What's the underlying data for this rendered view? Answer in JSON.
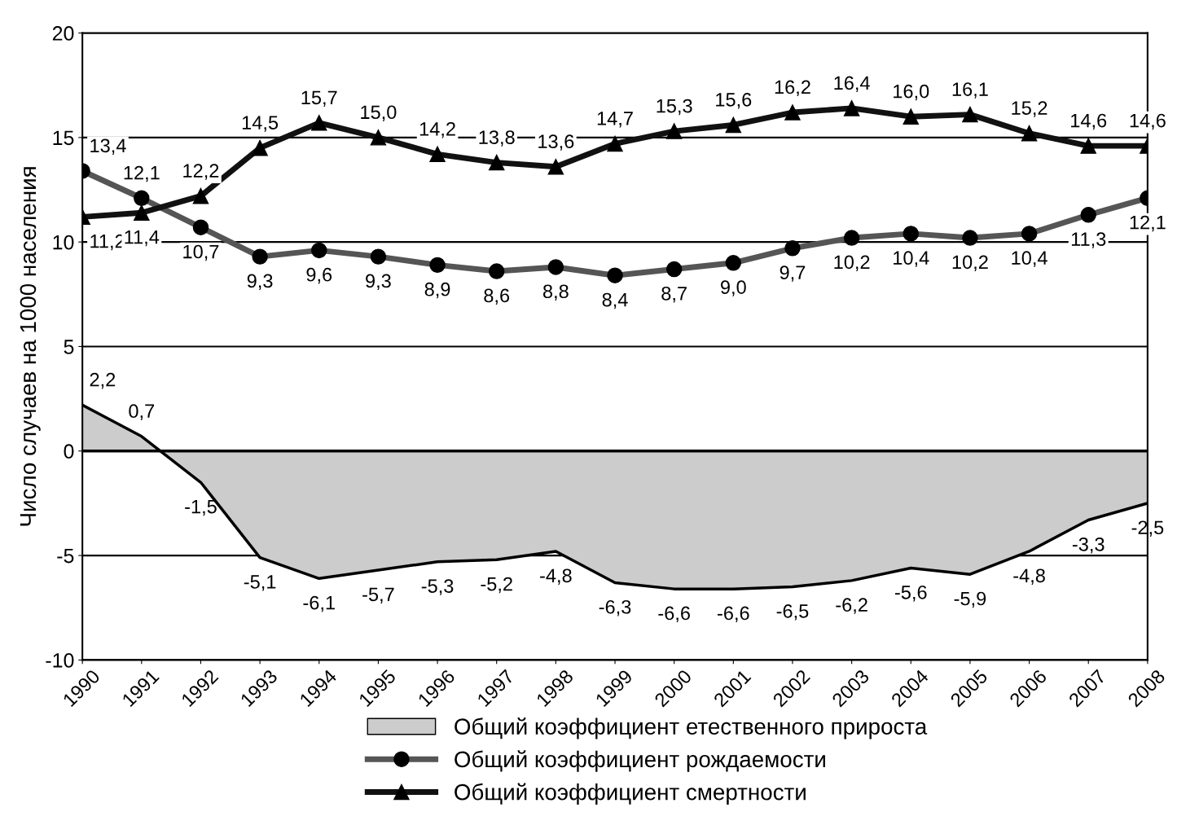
{
  "chart_data": {
    "type": "line",
    "ylabel": "Число случаев на 1000 населения",
    "categories": [
      "1990",
      "1991",
      "1992",
      "1993",
      "1994",
      "1995",
      "1996",
      "1997",
      "1998",
      "1999",
      "2000",
      "2001",
      "2002",
      "2003",
      "2004",
      "2005",
      "2006",
      "2007",
      "2008"
    ],
    "series": [
      {
        "name": "Общий коэффициент етественного прироста",
        "type": "area",
        "color": "#cccccc",
        "marker": "none",
        "values": [
          2.2,
          0.7,
          -1.5,
          -5.1,
          -6.1,
          -5.7,
          -5.3,
          -5.2,
          -4.8,
          -6.3,
          -6.6,
          -6.6,
          -6.5,
          -6.2,
          -5.6,
          -5.9,
          -4.8,
          -3.3,
          -2.5
        ],
        "value_labels": [
          "2,2",
          "0,7",
          "-1,5",
          "-5,1",
          "-6,1",
          "-5,7",
          "-5,3",
          "-5,2",
          "-4,8",
          "-6,3",
          "-6,6",
          "-6,6",
          "-6,5",
          "-6,2",
          "-5,6",
          "-5,9",
          "-4,8",
          "-3,3",
          "-2,5"
        ]
      },
      {
        "name": "Общий коэффициент рождаемости",
        "color": "#555555",
        "marker": "circle",
        "values": [
          13.4,
          12.1,
          10.7,
          9.3,
          9.6,
          9.3,
          8.9,
          8.6,
          8.8,
          8.4,
          8.7,
          9.0,
          9.7,
          10.2,
          10.4,
          10.2,
          10.4,
          11.3,
          12.1
        ],
        "value_labels": [
          "13,4",
          "12,1",
          "10,7",
          "9,3",
          "9,6",
          "9,3",
          "8,9",
          "8,6",
          "8,8",
          "8,4",
          "8,7",
          "9,0",
          "9,7",
          "10,2",
          "10,4",
          "10,2",
          "10,4",
          "11,3",
          "12,1"
        ]
      },
      {
        "name": "Общий коэффициент смертности",
        "color": "#111111",
        "marker": "triangle",
        "values": [
          11.2,
          11.4,
          12.2,
          14.5,
          15.7,
          15.0,
          14.2,
          13.8,
          13.6,
          14.7,
          15.3,
          15.6,
          16.2,
          16.4,
          16.0,
          16.1,
          15.2,
          14.6,
          14.6
        ],
        "value_labels": [
          "11,2",
          "11,4",
          "12,2",
          "14,5",
          "15,7",
          "15,0",
          "14,2",
          "13,8",
          "13,6",
          "14,7",
          "15,3",
          "15,6",
          "16,2",
          "16,4",
          "16,0",
          "16,1",
          "15,2",
          "14,6",
          "14,6"
        ]
      }
    ],
    "ylim": [
      -10,
      20
    ],
    "yticks": [
      -10,
      -5,
      0,
      5,
      10,
      15,
      20
    ],
    "grid": "y",
    "legend": "bottom"
  }
}
